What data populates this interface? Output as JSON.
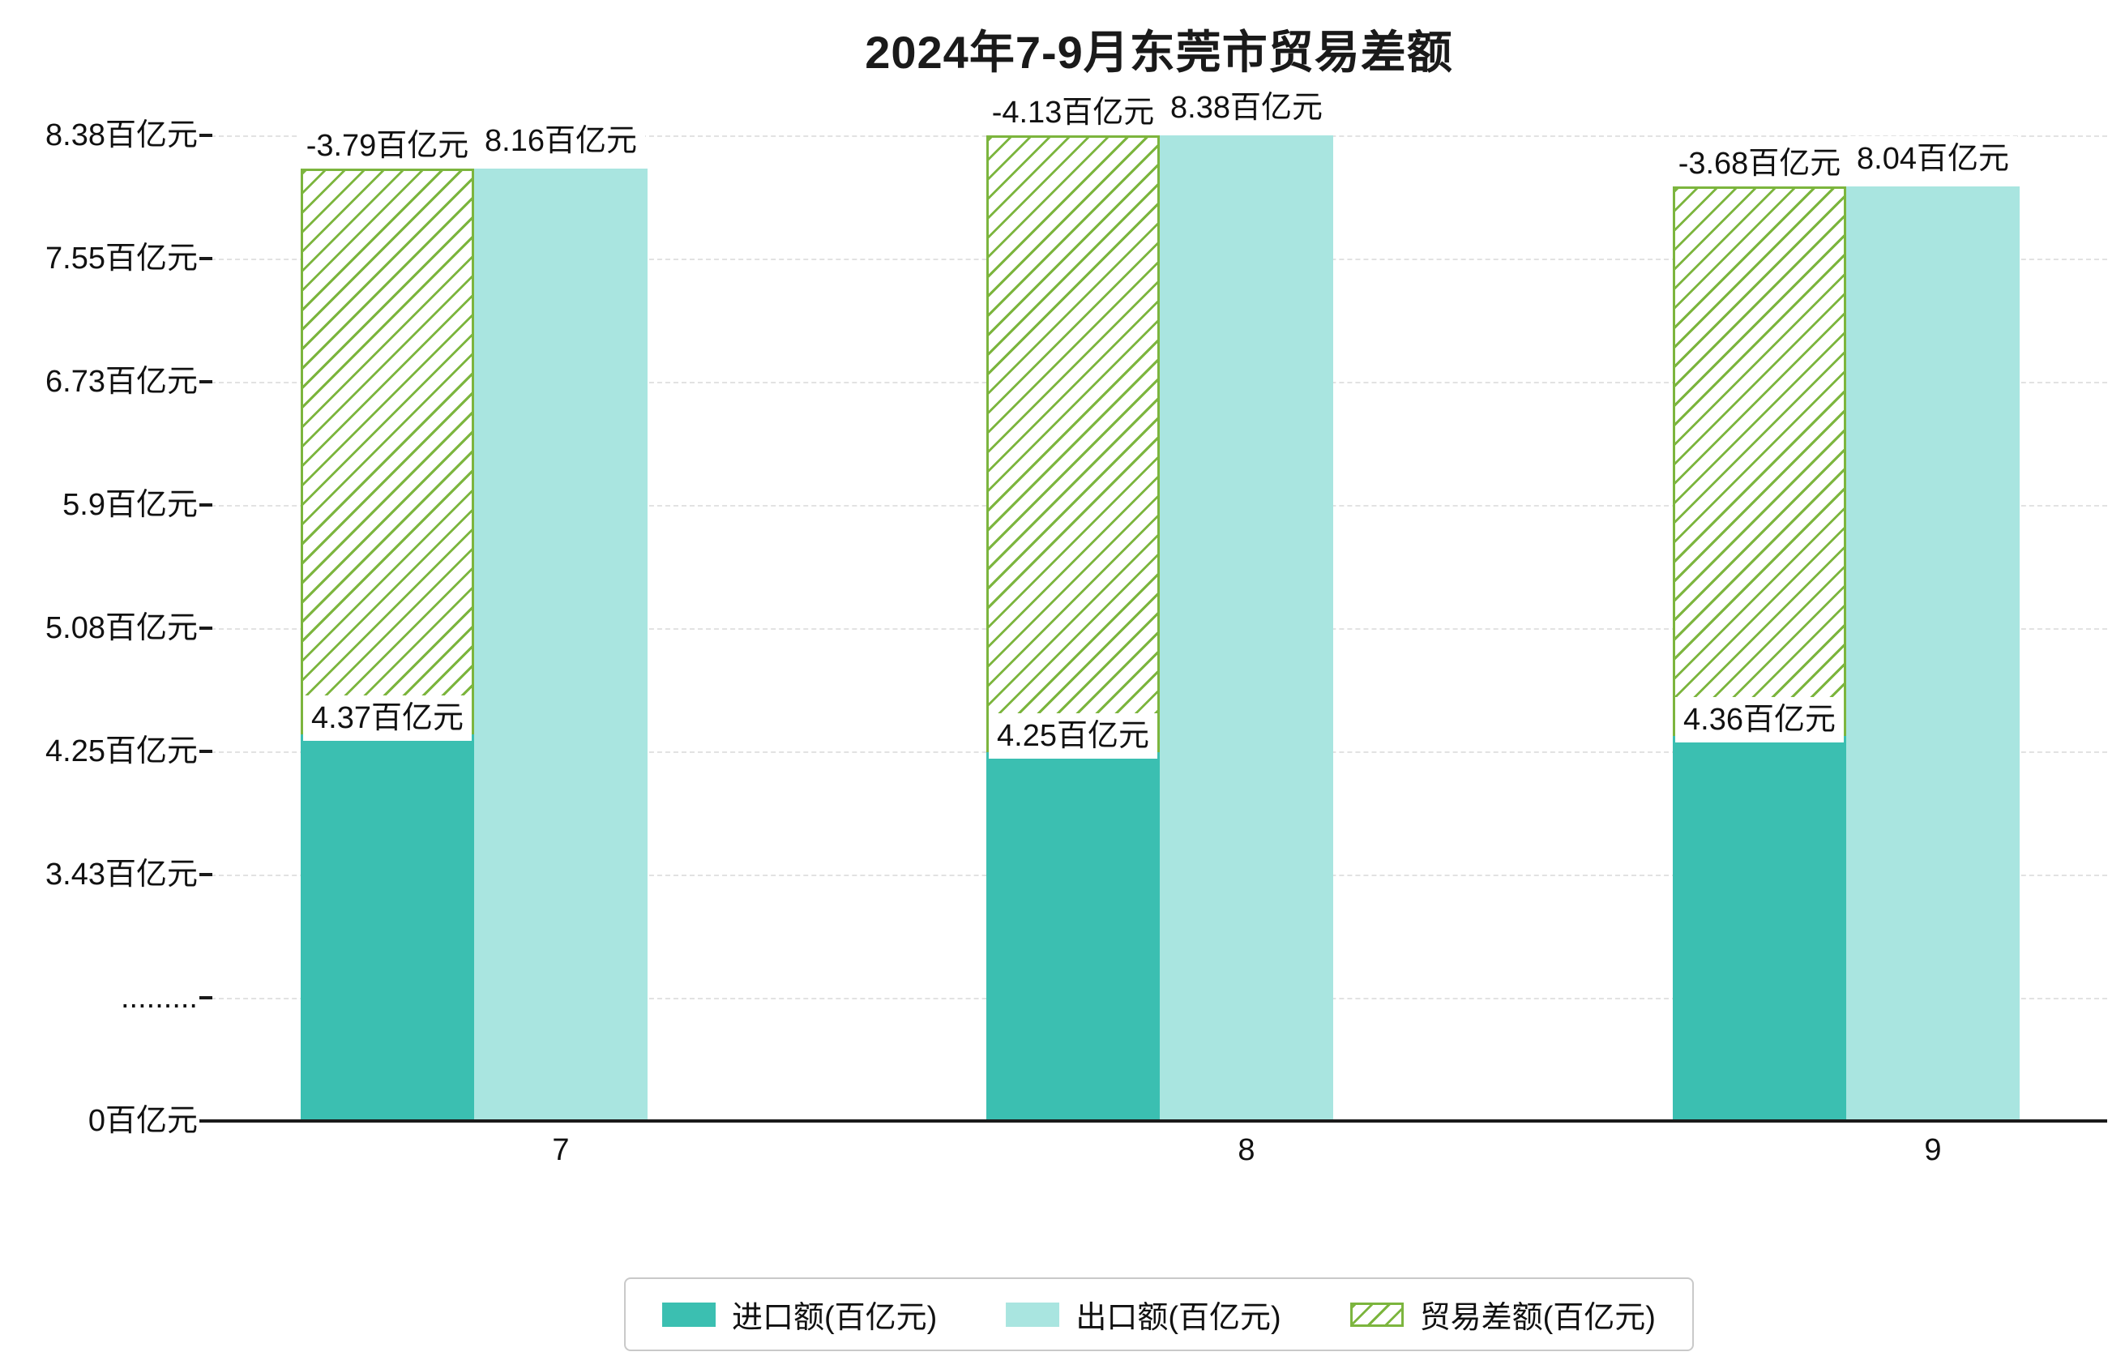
{
  "title": "2024年7-9月东莞市贸易差额",
  "colors": {
    "import_fill": "#3bbfb1",
    "export_fill": "#a9e5e0",
    "balance_stroke": "#7cb53e",
    "grid": "#e2e2e2",
    "axis": "#1a1a1a",
    "label_bg": "#ffffff",
    "text": "#111111"
  },
  "y_axis": {
    "tick_labels": [
      "8.38百亿元",
      "7.55百亿元",
      "6.73百亿元",
      "5.9百亿元",
      "5.08百亿元",
      "4.25百亿元",
      "3.43百亿元",
      ".........",
      "0百亿元"
    ]
  },
  "x_axis": {
    "tick_labels": [
      "7",
      "8",
      "9"
    ]
  },
  "legend": {
    "items": [
      {
        "label": "进口额(百亿元)",
        "swatch": "import"
      },
      {
        "label": "出口额(百亿元)",
        "swatch": "export"
      },
      {
        "label": "贸易差额(百亿元)",
        "swatch": "balance"
      }
    ]
  },
  "chart_data": {
    "type": "bar",
    "title": "2024年7-9月东莞市贸易差额",
    "categories": [
      "7",
      "8",
      "9"
    ],
    "unit": "百亿元",
    "series": [
      {
        "name": "进口额(百亿元)",
        "role": "import",
        "values": [
          4.37,
          4.25,
          4.36
        ],
        "data_labels": [
          "4.37百亿元",
          "4.25百亿元",
          "4.36百亿元"
        ]
      },
      {
        "name": "出口额(百亿元)",
        "role": "export",
        "values": [
          8.16,
          8.38,
          8.04
        ],
        "data_labels": [
          "8.16百亿元",
          "8.38百亿元",
          "8.04百亿元"
        ]
      },
      {
        "name": "贸易差额(百亿元)",
        "role": "balance",
        "values": [
          -3.79,
          -4.13,
          -3.68
        ],
        "data_labels": [
          "-3.79百亿元",
          "-4.13百亿元",
          "-3.68百亿元"
        ]
      }
    ],
    "y_axis": {
      "tick_values_bottom_to_top": [
        0,
        "break",
        3.43,
        4.25,
        5.08,
        5.9,
        6.73,
        7.55,
        8.38
      ],
      "axis_break_between": [
        0,
        3.43
      ]
    },
    "grid": true,
    "legend_position": "bottom",
    "balance_bar_style": "white bar with green diagonal hatch spanning from import top to export top"
  }
}
